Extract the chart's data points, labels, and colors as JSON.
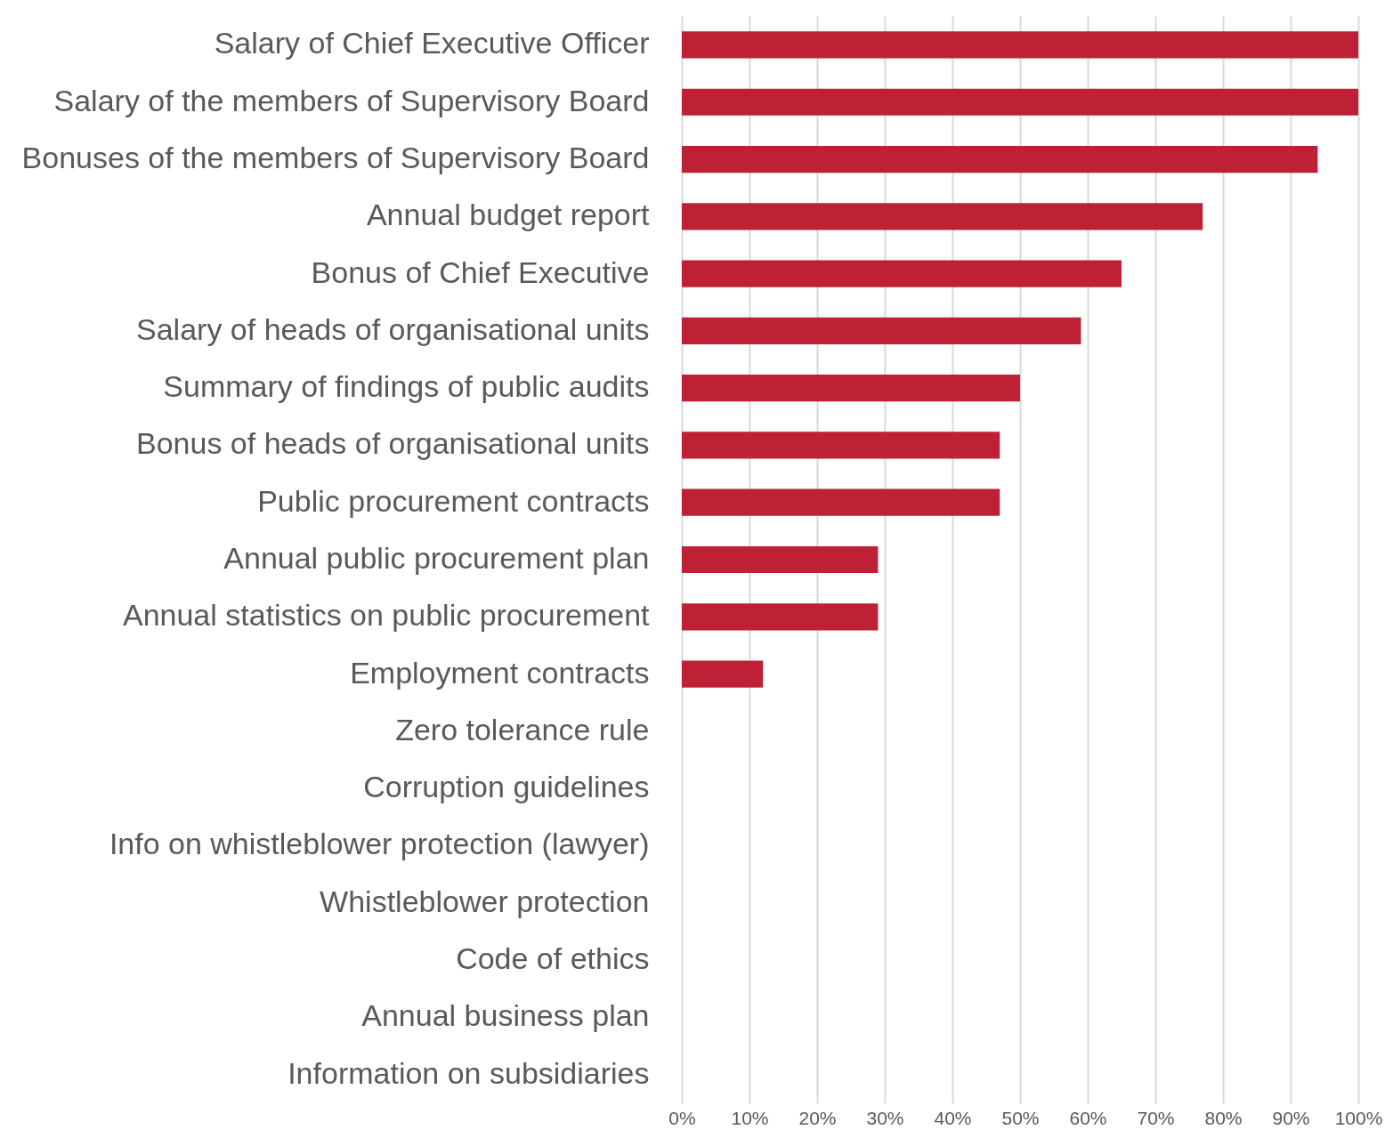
{
  "chart_data": {
    "type": "bar",
    "orientation": "horizontal",
    "categories": [
      "Salary of Chief Executive Officer",
      "Salary of the members of Supervisory Board",
      "Bonuses of the members of Supervisory Board",
      "Annual budget report",
      "Bonus of Chief Executive",
      "Salary of heads of organisational units",
      "Summary of findings of public audits",
      "Bonus of heads of organisational units",
      "Public procurement contracts",
      "Annual public procurement plan",
      "Annual statistics on public procurement",
      "Employment contracts",
      "Zero tolerance rule",
      "Corruption guidelines",
      "Info on whistleblower protection (lawyer)",
      "Whistleblower protection",
      "Code of ethics",
      "Annual business plan",
      "Information on subsidiaries"
    ],
    "values": [
      100,
      100,
      94,
      77,
      65,
      59,
      50,
      47,
      47,
      29,
      29,
      12,
      0,
      0,
      0,
      0,
      0,
      0,
      0
    ],
    "color": "#be2035",
    "xlim": [
      0,
      100
    ],
    "xticks": [
      {
        "value": 0,
        "label": "0%"
      },
      {
        "value": 10,
        "label": "10%"
      },
      {
        "value": 20,
        "label": "20%"
      },
      {
        "value": 30,
        "label": "30%"
      },
      {
        "value": 40,
        "label": "40%"
      },
      {
        "value": 50,
        "label": "50%"
      },
      {
        "value": 60,
        "label": "60%"
      },
      {
        "value": 70,
        "label": "70%"
      },
      {
        "value": 80,
        "label": "80%"
      },
      {
        "value": 90,
        "label": "90%"
      },
      {
        "value": 100,
        "label": "100%"
      }
    ],
    "grid": "x"
  }
}
